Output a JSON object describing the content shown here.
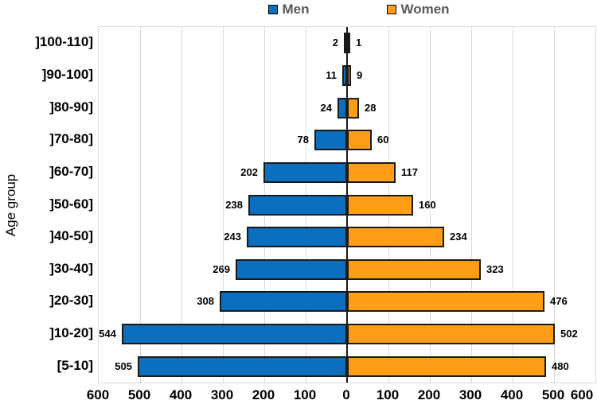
{
  "chart_data": {
    "type": "bar",
    "variant": "population-pyramid",
    "title": "",
    "xlabel": "",
    "ylabel": "Age group",
    "categories": [
      "]100-110]",
      "]90-100]",
      "]80-90]",
      "]70-80]",
      "]60-70]",
      "]50-60]",
      "]40-50]",
      "]30-40]",
      "]20-30]",
      "]10-20]",
      "[5-10]"
    ],
    "series": [
      {
        "name": "Men",
        "side": "left",
        "color": "#0b6fbe",
        "values": [
          2,
          11,
          24,
          78,
          202,
          238,
          243,
          269,
          308,
          544,
          505
        ]
      },
      {
        "name": "Women",
        "side": "right",
        "color": "#ff9e16",
        "values": [
          1,
          9,
          28,
          60,
          117,
          160,
          234,
          323,
          476,
          502,
          480
        ]
      }
    ],
    "x_tick_labels": [
      "600",
      "500",
      "400",
      "300",
      "200",
      "100",
      "0",
      "100",
      "200",
      "300",
      "400",
      "500",
      "600"
    ],
    "xlim": [
      -600,
      600
    ],
    "grid": "vertical",
    "legend_position": "top-center",
    "bar_border_color": "#1a1a1a",
    "gridline_color": "#d9d9d9",
    "axis_line_color": "#1a1a1a",
    "legend_text_color": "#595959"
  }
}
